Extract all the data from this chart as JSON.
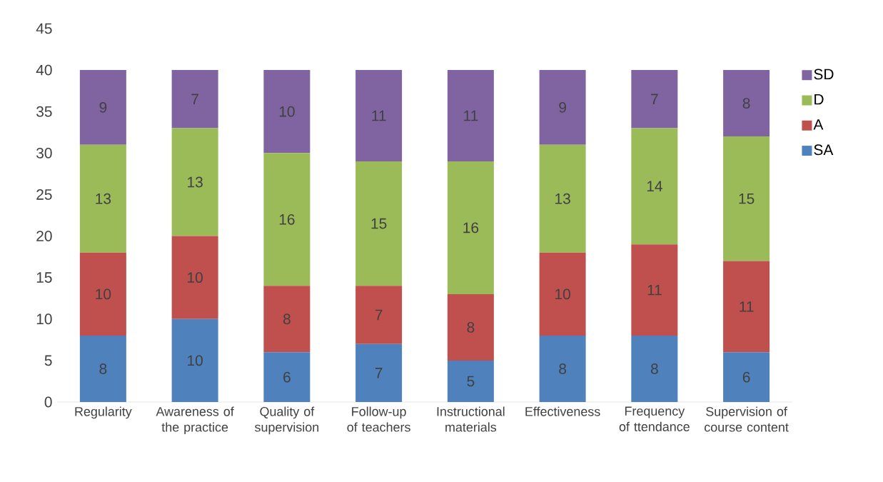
{
  "chart_data": {
    "type": "bar",
    "stacked": true,
    "categories": [
      "Regularity",
      "Awareness of the practice",
      "Quality of supervision",
      "Follow-up of teachers",
      "Instructional materials",
      "Effectiveness",
      "Frequency of ttendance",
      "Supervision of course content"
    ],
    "series": [
      {
        "name": "SA",
        "color": "#4f81bd",
        "values": [
          8,
          10,
          6,
          7,
          5,
          8,
          8,
          6
        ]
      },
      {
        "name": "A",
        "color": "#c0504d",
        "values": [
          10,
          10,
          8,
          7,
          8,
          10,
          11,
          11
        ]
      },
      {
        "name": "D",
        "color": "#9bbb59",
        "values": [
          13,
          13,
          16,
          15,
          16,
          13,
          14,
          15
        ]
      },
      {
        "name": "SD",
        "color": "#8064a2",
        "values": [
          9,
          7,
          10,
          11,
          11,
          9,
          7,
          8
        ]
      }
    ],
    "ylim": [
      0,
      45
    ],
    "yticks": [
      0,
      5,
      10,
      15,
      20,
      25,
      30,
      35,
      40,
      45
    ],
    "legend": "right",
    "data_labels": true
  }
}
